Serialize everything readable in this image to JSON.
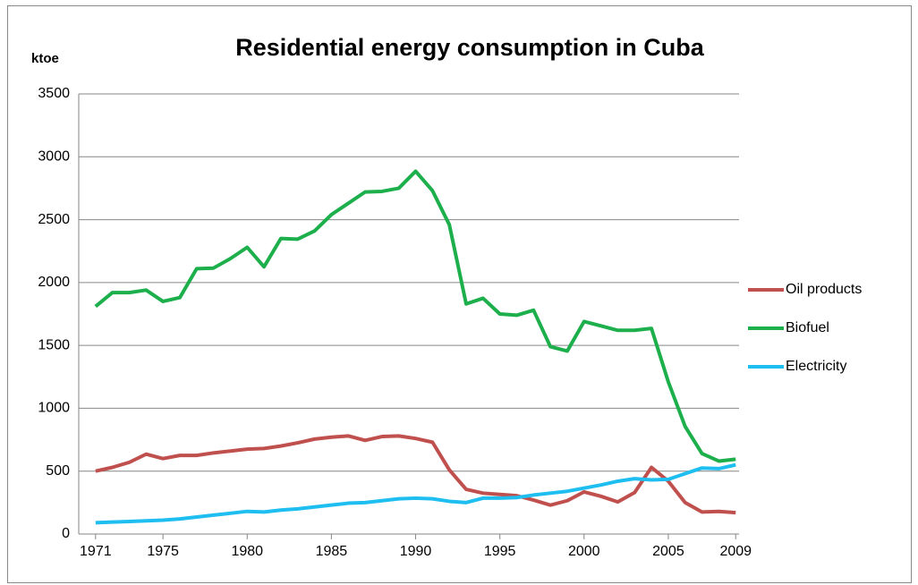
{
  "chart_data": {
    "type": "line",
    "title": "Residential energy consumption in Cuba",
    "y_label": "ktoe",
    "x": [
      1971,
      1972,
      1973,
      1974,
      1975,
      1976,
      1977,
      1978,
      1979,
      1980,
      1981,
      1982,
      1983,
      1984,
      1985,
      1986,
      1987,
      1988,
      1989,
      1990,
      1991,
      1992,
      1993,
      1994,
      1995,
      1996,
      1997,
      1998,
      1999,
      2000,
      2001,
      2002,
      2003,
      2004,
      2005,
      2006,
      2007,
      2008,
      2009
    ],
    "series": [
      {
        "name": "Oil products",
        "color": "#c0504d",
        "values": [
          500,
          530,
          570,
          635,
          600,
          625,
          625,
          645,
          660,
          675,
          680,
          700,
          725,
          755,
          770,
          780,
          745,
          775,
          780,
          760,
          730,
          510,
          355,
          325,
          315,
          305,
          270,
          230,
          265,
          335,
          300,
          255,
          330,
          530,
          420,
          250,
          175,
          180,
          170
        ]
      },
      {
        "name": "Biofuel",
        "color": "#1daf4b",
        "values": [
          1810,
          1920,
          1920,
          1940,
          1850,
          1880,
          2110,
          2115,
          2190,
          2280,
          2125,
          2350,
          2345,
          2410,
          2540,
          2630,
          2720,
          2725,
          2750,
          2885,
          2730,
          2460,
          1830,
          1875,
          1750,
          1740,
          1780,
          1490,
          1455,
          1690,
          1655,
          1620,
          1620,
          1635,
          1210,
          855,
          640,
          580,
          595
        ]
      },
      {
        "name": "Electricity",
        "color": "#1fbef0",
        "values": [
          90,
          95,
          100,
          105,
          110,
          120,
          135,
          150,
          165,
          180,
          175,
          190,
          200,
          215,
          230,
          245,
          250,
          265,
          280,
          285,
          280,
          260,
          250,
          285,
          285,
          290,
          310,
          325,
          340,
          365,
          390,
          420,
          440,
          430,
          435,
          480,
          525,
          520,
          550
        ]
      }
    ],
    "xlim": [
      1970,
      2009.2
    ],
    "xticks": [
      1971,
      1975,
      1980,
      1985,
      1990,
      1995,
      2000,
      2005,
      2009
    ],
    "ylim": [
      0,
      3500
    ],
    "yticks": [
      0,
      500,
      1000,
      1500,
      2000,
      2500,
      3000,
      3500
    ],
    "grid": true,
    "legend": "right"
  }
}
